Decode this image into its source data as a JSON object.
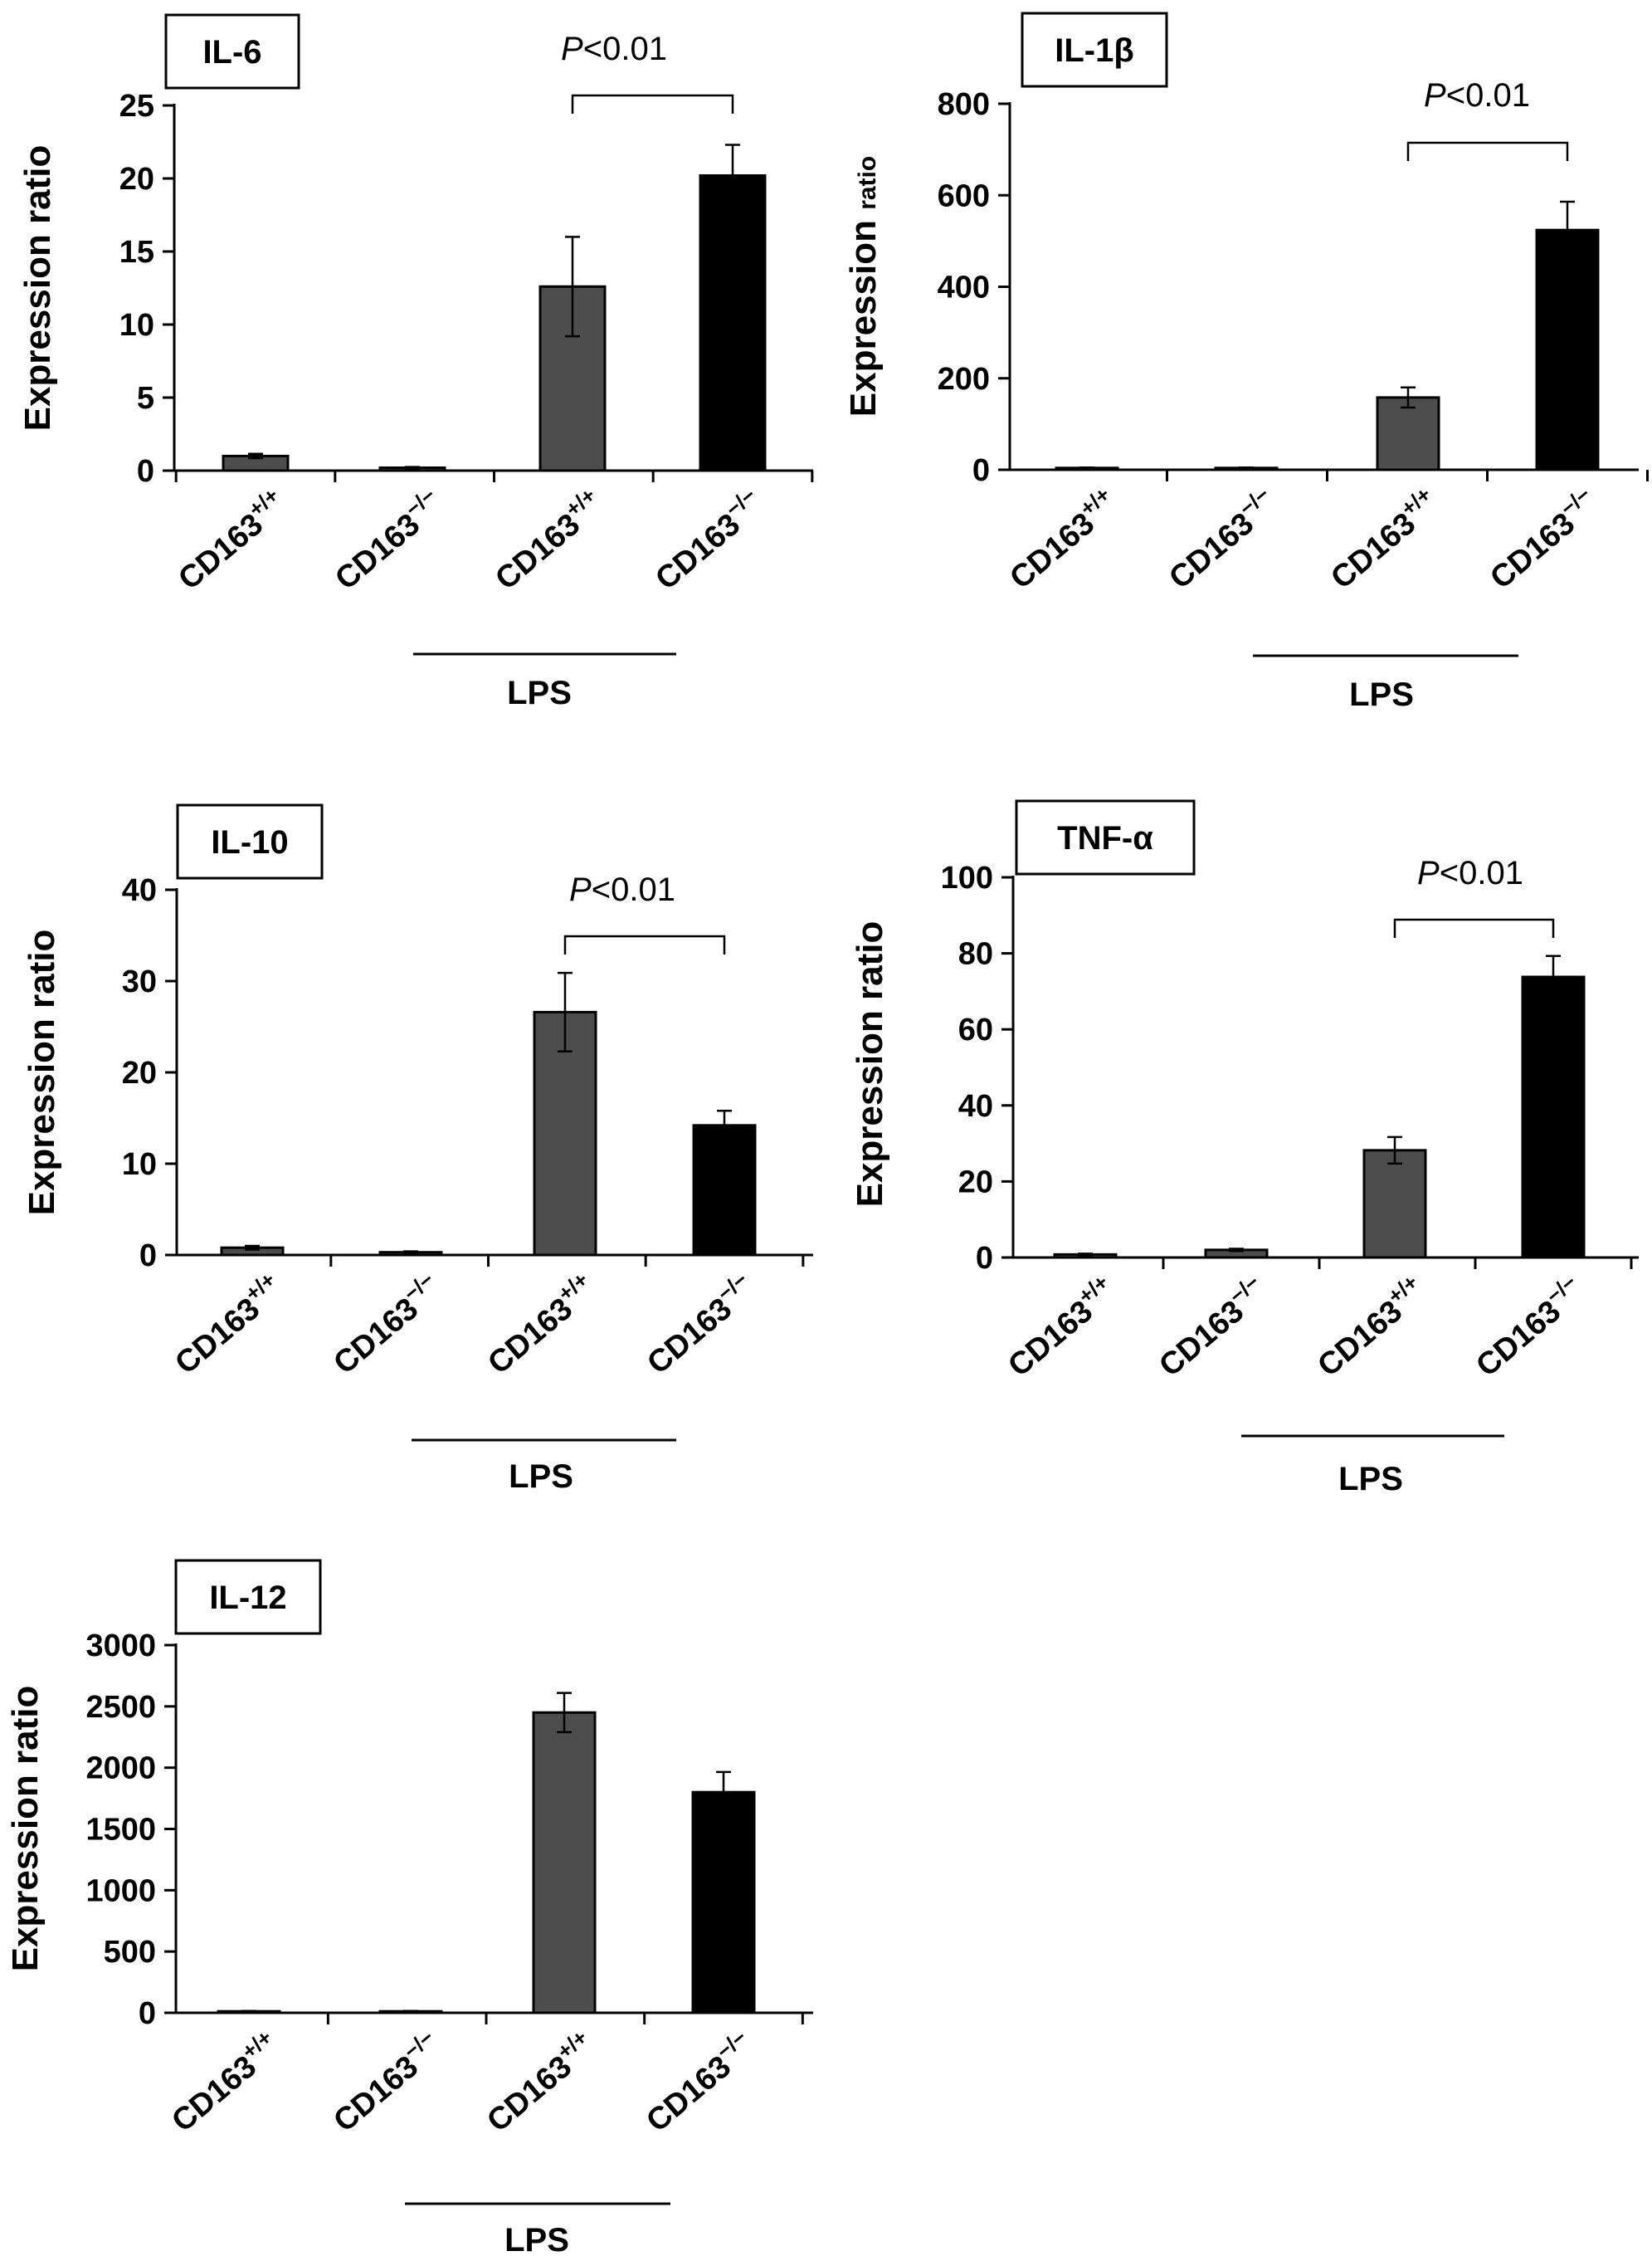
{
  "chart_data": [
    {
      "type": "bar",
      "title": "IL-6",
      "ylabel": "Expression ratio",
      "ylim": [
        0,
        25
      ],
      "yticks": [
        "0",
        "5",
        "10",
        "15",
        "20",
        "25"
      ],
      "categories": [
        {
          "base": "CD163",
          "sup": "+/+"
        },
        {
          "base": "CD163",
          "sup": "−/−"
        },
        {
          "base": "CD163",
          "sup": "+/+"
        },
        {
          "base": "CD163",
          "sup": "−/−"
        }
      ],
      "values": [
        1.0,
        0.2,
        12.6,
        20.2
      ],
      "errors": [
        0.15,
        0.05,
        3.4,
        2.1
      ],
      "bar_colors": [
        "#4d4d4d",
        "#4d4d4d",
        "#4d4d4d",
        "#000000"
      ],
      "group_label": "LPS",
      "group_span": [
        2,
        3
      ],
      "significance": {
        "between": [
          2,
          3
        ],
        "label_prefix": "P",
        "label_rest": "<0.01"
      }
    },
    {
      "type": "bar",
      "title": "IL-1β",
      "ylabel": "Expression ",
      "ylabel_small": "ratio",
      "ylim": [
        0,
        800
      ],
      "yticks": [
        "0",
        "200",
        "400",
        "600",
        "800"
      ],
      "categories": [
        {
          "base": "CD163",
          "sup": "+/+"
        },
        {
          "base": "CD163",
          "sup": "−/−"
        },
        {
          "base": "CD163",
          "sup": "+/+"
        },
        {
          "base": "CD163",
          "sup": "−/−"
        }
      ],
      "values": [
        4,
        4,
        158,
        524
      ],
      "errors": [
        1,
        1,
        22,
        62
      ],
      "bar_colors": [
        "#4d4d4d",
        "#4d4d4d",
        "#4d4d4d",
        "#000000"
      ],
      "group_label": "LPS",
      "group_span": [
        2,
        3
      ],
      "significance": {
        "between": [
          2,
          3
        ],
        "label_prefix": "P",
        "label_rest": "<0.01"
      }
    },
    {
      "type": "bar",
      "title": "IL-10",
      "ylabel": "Expression ratio",
      "ylim": [
        0,
        40
      ],
      "yticks": [
        "0",
        "10",
        "20",
        "30",
        "40"
      ],
      "categories": [
        {
          "base": "CD163",
          "sup": "+/+"
        },
        {
          "base": "CD163",
          "sup": "−/−"
        },
        {
          "base": "CD163",
          "sup": "+/+"
        },
        {
          "base": "CD163",
          "sup": "−/−"
        }
      ],
      "values": [
        0.8,
        0.3,
        26.6,
        14.2
      ],
      "errors": [
        0.2,
        0.1,
        4.3,
        1.6
      ],
      "bar_colors": [
        "#4d4d4d",
        "#4d4d4d",
        "#4d4d4d",
        "#000000"
      ],
      "group_label": "LPS",
      "group_span": [
        2,
        3
      ],
      "significance": {
        "between": [
          2,
          3
        ],
        "label_prefix": "P",
        "label_rest": "<0.01"
      }
    },
    {
      "type": "bar",
      "title": "TNF-α",
      "ylabel": "Expression ratio",
      "ylim": [
        0,
        100
      ],
      "yticks": [
        "0",
        "20",
        "40",
        "60",
        "80",
        "100"
      ],
      "categories": [
        {
          "base": "CD163",
          "sup": "+/+"
        },
        {
          "base": "CD163",
          "sup": "−/−"
        },
        {
          "base": "CD163",
          "sup": "+/+"
        },
        {
          "base": "CD163",
          "sup": "−/−"
        }
      ],
      "values": [
        0.8,
        2.0,
        28.2,
        73.8
      ],
      "errors": [
        0.2,
        0.3,
        3.5,
        5.5
      ],
      "bar_colors": [
        "#4d4d4d",
        "#4d4d4d",
        "#4d4d4d",
        "#000000"
      ],
      "group_label": "LPS",
      "group_span": [
        2,
        3
      ],
      "significance": {
        "between": [
          2,
          3
        ],
        "label_prefix": "P",
        "label_rest": "<0.01"
      }
    },
    {
      "type": "bar",
      "title": "IL-12",
      "ylabel": "Expression ratio",
      "ylim": [
        0,
        3000
      ],
      "yticks": [
        "0",
        "500",
        "1000",
        "1500",
        "2000",
        "2500",
        "3000"
      ],
      "categories": [
        {
          "base": "CD163",
          "sup": "+/+"
        },
        {
          "base": "CD163",
          "sup": "−/−"
        },
        {
          "base": "CD163",
          "sup": "+/+"
        },
        {
          "base": "CD163",
          "sup": "−/−"
        }
      ],
      "values": [
        12,
        12,
        2450,
        1800
      ],
      "errors": [
        3,
        3,
        160,
        165
      ],
      "bar_colors": [
        "#4d4d4d",
        "#4d4d4d",
        "#4d4d4d",
        "#000000"
      ],
      "group_label": "LPS",
      "group_span": [
        2,
        3
      ]
    }
  ]
}
